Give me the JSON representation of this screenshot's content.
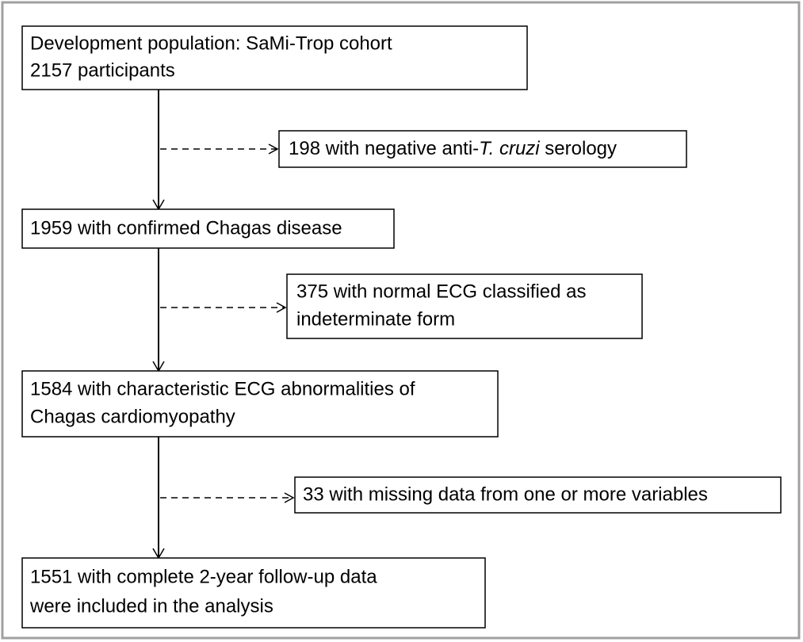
{
  "nodes": [
    {
      "lines": [
        "Development population: SaMi-Trop cohort",
        "2157 participants"
      ]
    },
    {
      "segments": [
        "198 with negative anti-",
        "T. cruzi",
        " serology"
      ]
    },
    {
      "lines": [
        "1959 with confirmed Chagas disease"
      ]
    },
    {
      "lines": [
        "375 with normal ECG classified as",
        "indeterminate form"
      ]
    },
    {
      "lines": [
        "1584 with characteristic ECG abnormalities of",
        "Chagas cardiomyopathy"
      ]
    },
    {
      "lines": [
        "33 with missing data from one or more variables"
      ]
    },
    {
      "lines": [
        "1551 with complete 2-year follow-up data",
        "were included in the analysis"
      ]
    }
  ]
}
